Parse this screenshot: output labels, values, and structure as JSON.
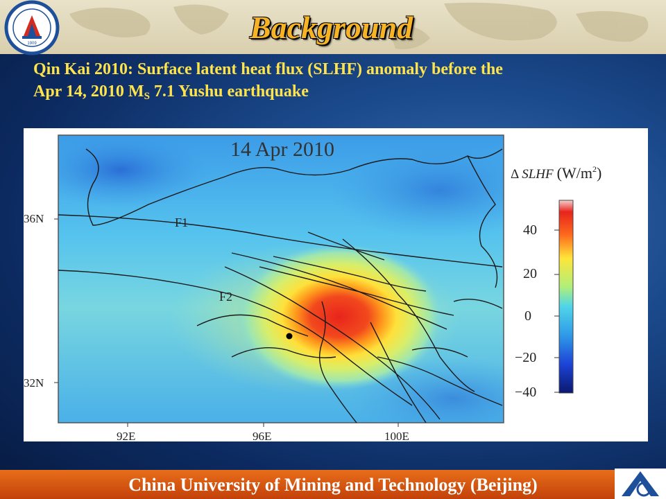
{
  "slide": {
    "title": "Background",
    "subtitle_line1": "Qin Kai 2010: Surface latent heat flux (SLHF) anomaly before the",
    "subtitle_line2_a": "Apr 14, 2010 M",
    "subtitle_line2_sub": "S",
    "subtitle_line2_b": " 7.1 Yushu earthquake",
    "footer": "China University of Mining and Technology (Beijing)",
    "logo_text": "1909"
  },
  "map": {
    "date_label": "14 Apr 2010",
    "lat_labels": [
      "36N",
      "32N"
    ],
    "lon_labels": [
      "92E",
      "96E",
      "100E"
    ],
    "fault_labels": [
      "F1",
      "F2"
    ],
    "colorbar_title_symbol": "Δ",
    "colorbar_title_var": "SLHF",
    "colorbar_title_unit": "(W/m",
    "colorbar_title_exp": "2",
    "colorbar_title_close": ")",
    "colorbar_ticks": [
      "40",
      "20",
      "0",
      "−20",
      "−40"
    ],
    "epicenter": "dot"
  },
  "colors": {
    "title": "#f6b325",
    "subtitle": "#ffe34a",
    "background": "#0b2456",
    "footer": "#d9570f"
  }
}
